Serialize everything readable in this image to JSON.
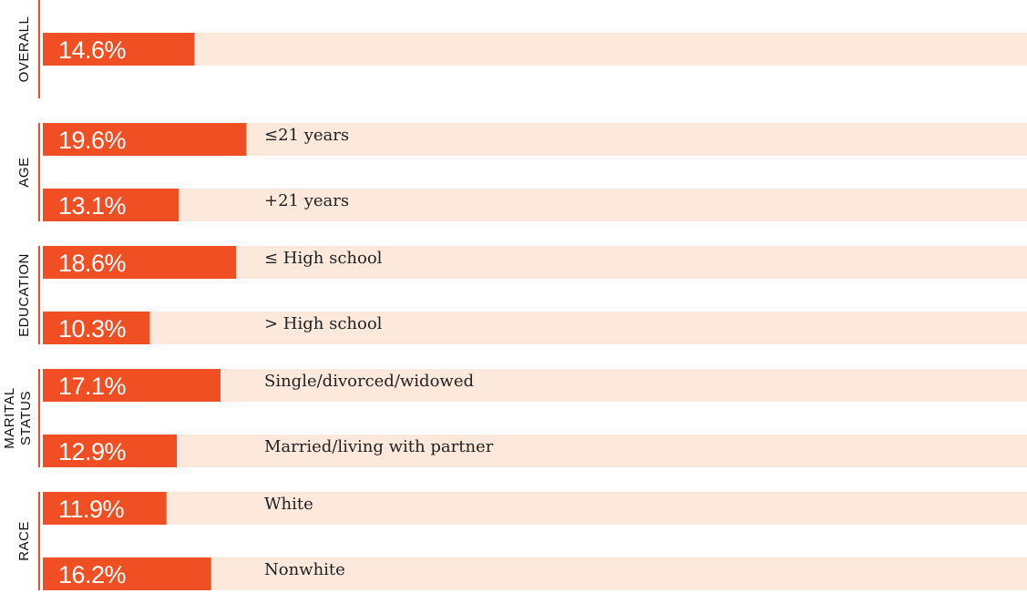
{
  "chart_data": {
    "type": "bar",
    "orientation": "horizontal",
    "xlim": [
      0,
      100
    ],
    "colors": {
      "bar": "#f04e23",
      "track": "#fde8dc",
      "group_rule": "#f04e23"
    },
    "groups": [
      {
        "label": "OVERALL",
        "items": [
          {
            "category": "",
            "value": 14.6,
            "value_label": "14.6%"
          }
        ]
      },
      {
        "label": "AGE",
        "items": [
          {
            "category": "≤21 years",
            "value": 19.6,
            "value_label": "19.6%"
          },
          {
            "category": "+21 years",
            "value": 13.1,
            "value_label": "13.1%"
          }
        ]
      },
      {
        "label": "EDUCATION",
        "items": [
          {
            "category": "≤ High school",
            "value": 18.6,
            "value_label": "18.6%"
          },
          {
            "category": "> High school",
            "value": 10.3,
            "value_label": "10.3%"
          }
        ]
      },
      {
        "label": "MARITAL STATUS",
        "label_lines": [
          "MARITAL",
          "STATUS"
        ],
        "items": [
          {
            "category": "Single/divorced/widowed",
            "value": 17.1,
            "value_label": "17.1%"
          },
          {
            "category": "Married/living with partner",
            "value": 12.9,
            "value_label": "12.9%"
          }
        ]
      },
      {
        "label": "RACE",
        "items": [
          {
            "category": "White",
            "value": 11.9,
            "value_label": "11.9%"
          },
          {
            "category": "Nonwhite",
            "value": 16.2,
            "value_label": "16.2%"
          }
        ]
      }
    ]
  }
}
